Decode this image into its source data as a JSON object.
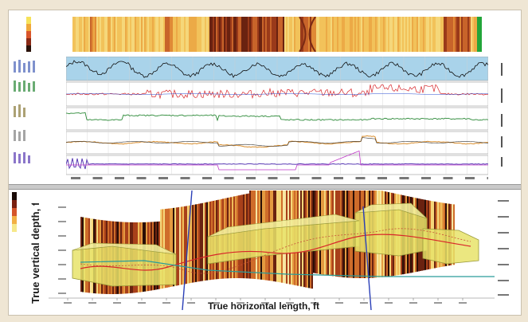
{
  "top_panel": {
    "track_labels": [
      "",
      "",
      "",
      "",
      ""
    ],
    "depth_ticks": [
      "",
      "",
      "",
      "",
      "",
      "",
      "",
      "",
      "",
      "",
      "",
      "",
      "",
      "",
      "",
      "",
      "",
      "",
      "",
      ""
    ]
  },
  "section_view": {
    "y_axis_label": "True vertical depth, ft",
    "x_axis_label": "True horizontal length, ft"
  },
  "colors": {
    "background": "#efe6d4",
    "track_gamma_fill": "#a9d3ea",
    "curve_red": "#d8262a",
    "curve_green": "#2c8a38",
    "curve_orange": "#d98d2c",
    "curve_purple": "#5b3db5",
    "formation_yellow": "#e8e36a",
    "wellpath_blue": "#2a3fb8",
    "marker_teal": "#2a9c9a"
  }
}
